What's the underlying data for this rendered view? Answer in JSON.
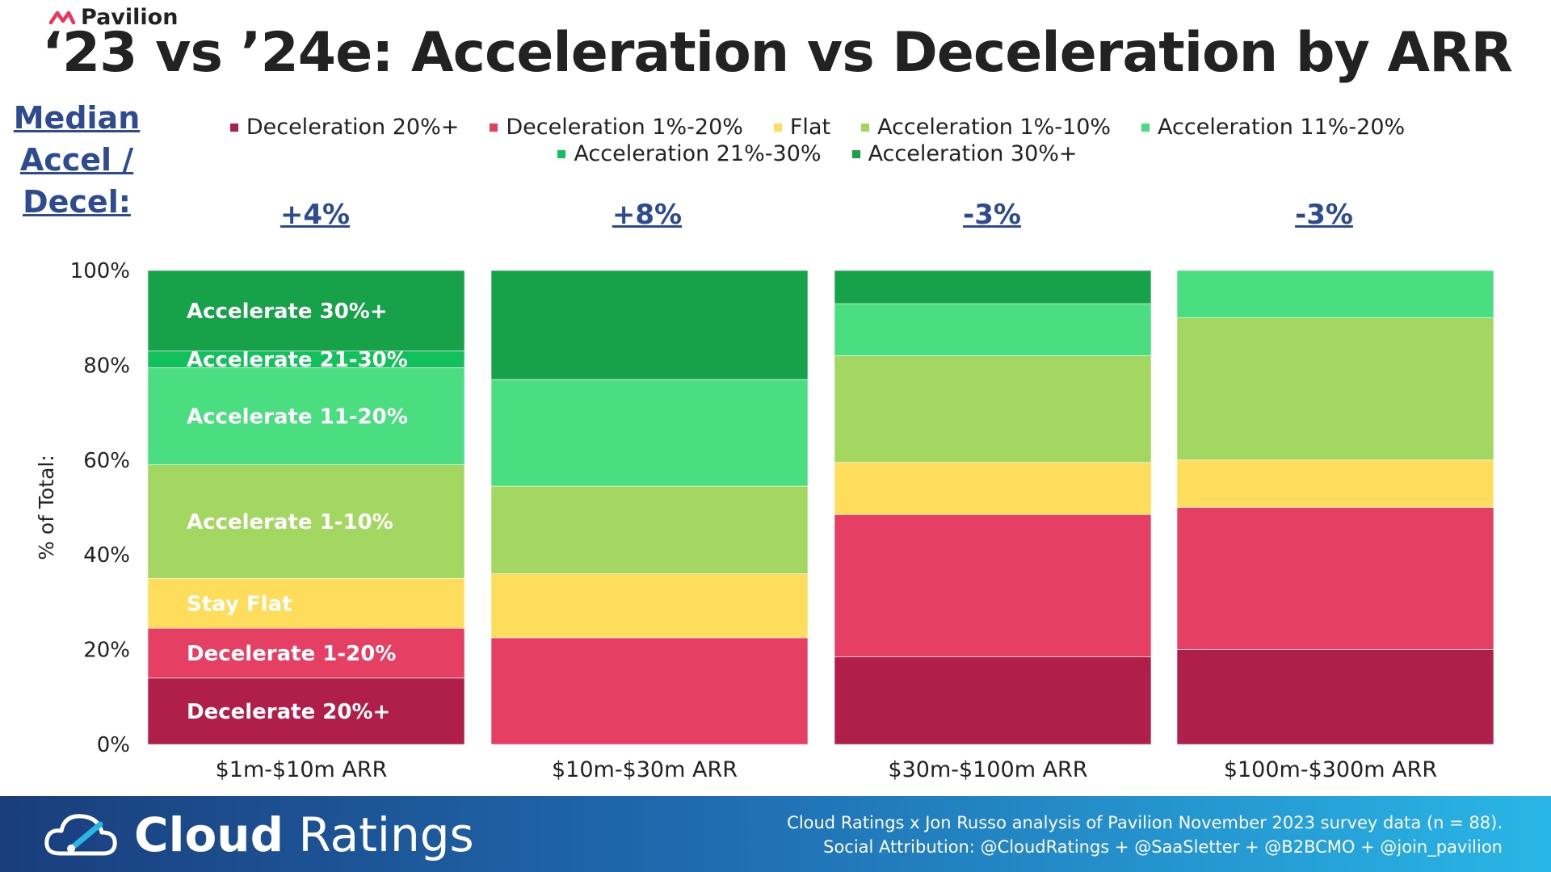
{
  "brand": {
    "name": "Pavilion",
    "accent": "#e8365d"
  },
  "title": "‘23 vs ’24e: Acceleration vs Deceleration by ARR",
  "median_label": [
    "Median",
    "Accel /",
    "Decel:"
  ],
  "median_values": [
    "+4%",
    "+8%",
    "-3%",
    "-3%"
  ],
  "chart_data": {
    "type": "bar",
    "stacked": true,
    "title": "‘23 vs ’24e: Acceleration vs Deceleration by ARR",
    "ylabel": "% of Total:",
    "xlabel": "",
    "ylim": [
      0,
      100
    ],
    "yticks": [
      "0%",
      "20%",
      "40%",
      "60%",
      "80%",
      "100%"
    ],
    "grid": false,
    "legend_position": "top",
    "categories": [
      "$1m-$10m ARR",
      "$10m-$30m ARR",
      "$30m-$100m ARR",
      "$100m-$300m ARR"
    ],
    "series": [
      {
        "name": "Deceleration 20%+",
        "color": "#b01f4a",
        "values": [
          14,
          0,
          18.5,
          20
        ]
      },
      {
        "name": "Deceleration 1%-20%",
        "color": "#e54064",
        "values": [
          10.5,
          22.5,
          30,
          30
        ]
      },
      {
        "name": "Flat",
        "color": "#fddd5b",
        "values": [
          10.5,
          13.5,
          11,
          10
        ]
      },
      {
        "name": "Acceleration 1%-10%",
        "color": "#a4d662",
        "values": [
          24,
          18.5,
          22.5,
          30
        ]
      },
      {
        "name": "Acceleration 11%-20%",
        "color": "#4ade80",
        "values": [
          20.5,
          22.5,
          11,
          10
        ]
      },
      {
        "name": "Acceleration 21%-30%",
        "color": "#12c15c",
        "values": [
          3.5,
          0,
          0,
          0
        ]
      },
      {
        "name": "Acceleration 30%+",
        "color": "#17a24a",
        "values": [
          17,
          23,
          7,
          0
        ]
      }
    ],
    "segment_labels": {
      "category": "$1m-$10m ARR",
      "labels": [
        "Decelerate 20%+",
        "Decelerate 1-20%",
        "Stay Flat",
        "Accelerate 1-10%",
        "Accelerate 11-20%",
        "Accelerate 21-30%",
        "Accelerate 30%+"
      ]
    }
  },
  "footer": {
    "logo_bold": "Cloud",
    "logo_light": " Ratings",
    "attribution_1": "Cloud Ratings x Jon Russo analysis of Pavilion November 2023 survey data (n = 88).",
    "attribution_2": "Social Attribution: @CloudRatings + @SaaSletter + @B2BCMO + @join_pavilion"
  }
}
